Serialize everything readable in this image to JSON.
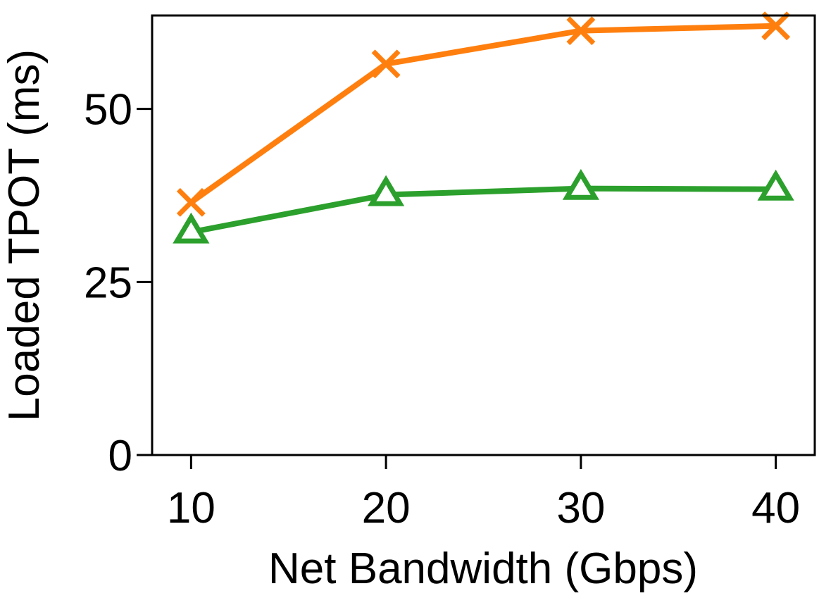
{
  "chart_data": {
    "type": "line",
    "title": "",
    "xlabel": "Net Bandwidth (Gbps)",
    "ylabel": "Loaded TPOT (ms)",
    "x": [
      10,
      20,
      30,
      40
    ],
    "x_tick_labels": [
      "10",
      "20",
      "30",
      "40"
    ],
    "y_ticks": [
      0,
      25,
      50
    ],
    "y_tick_labels": [
      "0",
      "25",
      "50"
    ],
    "xlim": [
      8,
      42
    ],
    "ylim": [
      0,
      63.5
    ],
    "grid": false,
    "legend": "none",
    "series": [
      {
        "name": "orange-series",
        "color": "#ff7f0e",
        "marker": "x",
        "values": [
          36.5,
          56.5,
          61.3,
          62.0
        ]
      },
      {
        "name": "green-series",
        "color": "#2ca02c",
        "marker": "triangle",
        "values": [
          32.2,
          37.6,
          38.5,
          38.4
        ]
      }
    ]
  }
}
